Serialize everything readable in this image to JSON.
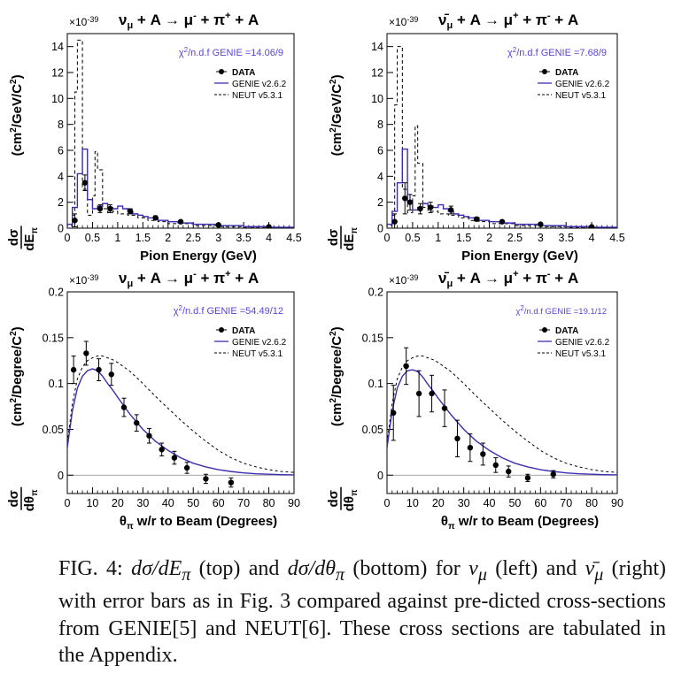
{
  "colors": {
    "genie": "#3b2fb0",
    "chi2_text": "#5a45d6",
    "data": "#000000",
    "neut": "#000000"
  },
  "chart_data": [
    {
      "type": "line",
      "title": "ν_μ + A → μ⁻ + π⁺ + A",
      "title_parts": [
        "ν",
        "μ",
        " + A → μ",
        "-",
        " + π",
        "+",
        " + A"
      ],
      "exponent": "×10⁻³⁹",
      "exp_parts": [
        "×10",
        "-39"
      ],
      "xlabel": "Pion Energy (GeV)",
      "ylabel": "dσ/dE_π (cm²/GeV/C²)",
      "ylabel_parts": [
        "(cm",
        "2",
        "/GeV/C",
        "2",
        ")"
      ],
      "ylabel_sub": "E",
      "ylabel_subsub": "π",
      "annotation": "χ²/n.d.f GENIE =14.06/9",
      "annotation_parts": [
        "χ",
        "2",
        "/n.d.f GENIE =14.06/9"
      ],
      "xlim": [
        0,
        4.5
      ],
      "ylim": [
        0,
        15
      ],
      "xticks": [
        "0",
        "0.5",
        "1",
        "1.5",
        "2",
        "2.5",
        "3",
        "3.5",
        "4",
        "4.5"
      ],
      "xtick_values": [
        0,
        0.5,
        1,
        1.5,
        2,
        2.5,
        3,
        3.5,
        4,
        4.5
      ],
      "yticks": [
        "0",
        "2",
        "4",
        "6",
        "8",
        "10",
        "12",
        "14"
      ],
      "ytick_values": [
        0,
        2,
        4,
        6,
        8,
        10,
        12,
        14
      ],
      "legend": [
        "DATA",
        "GENIE v2.6.2",
        "NEUT v5.3.1"
      ],
      "data": [
        {
          "x": 0.15,
          "y": 0.6,
          "err": 0.5
        },
        {
          "x": 0.35,
          "y": 3.5,
          "err": 0.6
        },
        {
          "x": 0.65,
          "y": 1.5,
          "err": 0.3
        },
        {
          "x": 0.85,
          "y": 1.5,
          "err": 0.3
        },
        {
          "x": 1.25,
          "y": 1.3,
          "err": 0.2
        },
        {
          "x": 1.75,
          "y": 0.8,
          "err": 0.15
        },
        {
          "x": 2.25,
          "y": 0.5,
          "err": 0.1
        },
        {
          "x": 3.0,
          "y": 0.25,
          "err": 0.08
        },
        {
          "x": 4.0,
          "y": 0.1,
          "err": 0.05
        }
      ],
      "genie": {
        "edges": [
          0,
          0.1,
          0.2,
          0.3,
          0.4,
          0.5,
          0.6,
          0.7,
          0.8,
          0.9,
          1.0,
          1.1,
          1.2,
          1.3,
          1.4,
          1.5,
          1.6,
          1.8,
          2.0,
          2.2,
          2.5,
          3.0,
          3.5,
          4.0,
          4.5
        ],
        "values": [
          0.3,
          1.6,
          4.2,
          6.1,
          2.2,
          1.5,
          1.7,
          1.9,
          1.6,
          1.5,
          1.7,
          1.5,
          1.3,
          1.1,
          1.0,
          0.9,
          0.8,
          0.6,
          0.5,
          0.4,
          0.3,
          0.2,
          0.12,
          0.07
        ]
      },
      "neut": {
        "edges": [
          0,
          0.1,
          0.15,
          0.2,
          0.3,
          0.4,
          0.5,
          0.55,
          0.6,
          0.7,
          0.8,
          0.9,
          1.0,
          1.2,
          1.4,
          1.6,
          1.8,
          2.0,
          2.5,
          3.0,
          3.5,
          4.0,
          4.5
        ],
        "values": [
          0.2,
          1.0,
          10.5,
          14.5,
          3.0,
          1.0,
          2.5,
          5.9,
          4.5,
          1.5,
          1.2,
          1.3,
          1.1,
          1.0,
          0.8,
          0.6,
          0.5,
          0.35,
          0.2,
          0.12,
          0.08,
          0.04
        ]
      }
    },
    {
      "type": "line",
      "title": "ν̄_μ + A → μ⁺ + π⁻ + A",
      "title_parts": [
        "ν̄",
        "μ",
        " + A → μ",
        "+",
        " + π",
        "-",
        " + A"
      ],
      "exponent": "×10⁻³⁹",
      "exp_parts": [
        "×10",
        "-39"
      ],
      "xlabel": "Pion Energy (GeV)",
      "ylabel": "dσ/dE_π (cm²/GeV/C²)",
      "ylabel_parts": [
        "(cm",
        "2",
        "/GeV/C",
        "2",
        ")"
      ],
      "ylabel_sub": "E",
      "ylabel_subsub": "π",
      "annotation": "χ²/n.d.f GENIE =7.68/9",
      "annotation_parts": [
        "χ",
        "2",
        "/n.d.f GENIE =7.68/9"
      ],
      "xlim": [
        0,
        4.5
      ],
      "ylim": [
        0,
        15
      ],
      "xticks": [
        "0",
        "0.5",
        "1",
        "1.5",
        "2",
        "2.5",
        "3",
        "3.5",
        "4",
        "4.5"
      ],
      "xtick_values": [
        0,
        0.5,
        1,
        1.5,
        2,
        2.5,
        3,
        3.5,
        4,
        4.5
      ],
      "yticks": [
        "0",
        "2",
        "4",
        "6",
        "8",
        "10",
        "12",
        "14"
      ],
      "ytick_values": [
        0,
        2,
        4,
        6,
        8,
        10,
        12,
        14
      ],
      "legend": [
        "DATA",
        "GENIE v2.6.2",
        "NEUT v5.3.1"
      ],
      "data": [
        {
          "x": 0.15,
          "y": 0.5,
          "err": 0.6
        },
        {
          "x": 0.35,
          "y": 2.3,
          "err": 1.2
        },
        {
          "x": 0.45,
          "y": 2.0,
          "err": 0.6
        },
        {
          "x": 0.65,
          "y": 1.5,
          "err": 0.4
        },
        {
          "x": 0.85,
          "y": 1.6,
          "err": 0.4
        },
        {
          "x": 1.25,
          "y": 1.4,
          "err": 0.3
        },
        {
          "x": 1.75,
          "y": 0.7,
          "err": 0.15
        },
        {
          "x": 2.25,
          "y": 0.5,
          "err": 0.1
        },
        {
          "x": 3.0,
          "y": 0.3,
          "err": 0.08
        },
        {
          "x": 4.0,
          "y": 0.1,
          "err": 0.05
        }
      ],
      "genie": {
        "edges": [
          0,
          0.1,
          0.2,
          0.3,
          0.4,
          0.5,
          0.6,
          0.7,
          0.8,
          0.9,
          1.0,
          1.1,
          1.2,
          1.3,
          1.4,
          1.5,
          1.6,
          1.8,
          2.0,
          2.2,
          2.5,
          3.0,
          3.5,
          4.0,
          4.5
        ],
        "values": [
          0.3,
          1.3,
          3.5,
          6.1,
          2.0,
          1.4,
          1.6,
          1.9,
          1.7,
          1.6,
          1.8,
          1.5,
          1.3,
          1.1,
          1.0,
          0.9,
          0.8,
          0.6,
          0.5,
          0.4,
          0.3,
          0.2,
          0.12,
          0.07
        ]
      },
      "neut": {
        "edges": [
          0,
          0.1,
          0.15,
          0.2,
          0.3,
          0.4,
          0.5,
          0.55,
          0.6,
          0.7,
          0.8,
          0.9,
          1.0,
          1.2,
          1.4,
          1.6,
          1.8,
          2.0,
          2.5,
          3.0,
          3.5,
          4.0,
          4.5
        ],
        "values": [
          0.2,
          1.0,
          9.5,
          14.0,
          3.0,
          1.2,
          2.5,
          7.9,
          5.0,
          1.6,
          1.3,
          1.3,
          1.1,
          1.0,
          0.8,
          0.6,
          0.5,
          0.35,
          0.2,
          0.12,
          0.08,
          0.04
        ]
      }
    },
    {
      "type": "line",
      "title": "ν_μ + A → μ⁻ + π⁺ + A",
      "title_parts": [
        "ν",
        "μ",
        " + A → μ",
        "-",
        " + π",
        "+",
        " + A"
      ],
      "exponent": "×10⁻³⁹",
      "exp_parts": [
        "×10",
        "-39"
      ],
      "xlabel": "θ_π w/r to Beam (Degrees)",
      "xlabel_parts": [
        "θ",
        "π",
        " w/r to Beam (Degrees)"
      ],
      "ylabel": "dσ/dθ_π (cm²/Degree/C²)",
      "ylabel_parts": [
        "(cm",
        "2",
        "/Degree/C",
        "2",
        ")"
      ],
      "ylabel_sub": "θ",
      "ylabel_subsub": "π",
      "annotation": "χ²/n.d.f GENIE =54.49/12",
      "annotation_parts": [
        "χ",
        "2",
        "/n.d.f GENIE =54.49/12"
      ],
      "xlim": [
        0,
        90
      ],
      "ylim": [
        -0.02,
        0.2
      ],
      "xticks": [
        "0",
        "10",
        "20",
        "30",
        "40",
        "50",
        "60",
        "70",
        "80",
        "90"
      ],
      "xtick_values": [
        0,
        10,
        20,
        30,
        40,
        50,
        60,
        70,
        80,
        90
      ],
      "yticks": [
        "0",
        "0.05",
        "0.1",
        "0.15",
        "0.2"
      ],
      "ytick_values": [
        0,
        0.05,
        0.1,
        0.15,
        0.2
      ],
      "legend": [
        "DATA",
        "GENIE v2.6.2",
        "NEUT v5.3.1"
      ],
      "data": [
        {
          "x": 2.5,
          "y": 0.115,
          "err": 0.015
        },
        {
          "x": 7.5,
          "y": 0.133,
          "err": 0.013
        },
        {
          "x": 12.5,
          "y": 0.115,
          "err": 0.012
        },
        {
          "x": 17.5,
          "y": 0.11,
          "err": 0.012
        },
        {
          "x": 22.5,
          "y": 0.074,
          "err": 0.01
        },
        {
          "x": 27.5,
          "y": 0.057,
          "err": 0.009
        },
        {
          "x": 32.5,
          "y": 0.043,
          "err": 0.008
        },
        {
          "x": 37.5,
          "y": 0.028,
          "err": 0.007
        },
        {
          "x": 42.5,
          "y": 0.019,
          "err": 0.007
        },
        {
          "x": 47.5,
          "y": 0.008,
          "err": 0.006
        },
        {
          "x": 55,
          "y": -0.004,
          "err": 0.005
        },
        {
          "x": 65,
          "y": -0.008,
          "err": 0.005
        }
      ],
      "genie_curve": {
        "x": [
          0,
          2,
          4,
          6,
          8,
          10,
          12,
          14,
          16,
          18,
          20,
          25,
          30,
          35,
          40,
          45,
          50,
          55,
          60,
          65,
          70,
          75,
          80,
          85,
          90
        ],
        "y": [
          0.03,
          0.07,
          0.095,
          0.108,
          0.114,
          0.116,
          0.114,
          0.108,
          0.1,
          0.093,
          0.085,
          0.066,
          0.05,
          0.037,
          0.027,
          0.019,
          0.013,
          0.009,
          0.006,
          0.004,
          0.0025,
          0.0015,
          0.001,
          0.0005,
          0.0003
        ]
      },
      "neut_curve": {
        "x": [
          0,
          2,
          4,
          6,
          8,
          10,
          12,
          14,
          16,
          18,
          20,
          25,
          30,
          35,
          40,
          45,
          50,
          55,
          60,
          65,
          70,
          75,
          80,
          85,
          90
        ],
        "y": [
          0.035,
          0.078,
          0.105,
          0.118,
          0.125,
          0.128,
          0.13,
          0.13,
          0.128,
          0.126,
          0.123,
          0.113,
          0.1,
          0.086,
          0.073,
          0.06,
          0.048,
          0.037,
          0.027,
          0.019,
          0.013,
          0.009,
          0.006,
          0.004,
          0.003
        ]
      }
    },
    {
      "type": "line",
      "title": "ν̄_μ + A → μ⁺ + π⁻ + A",
      "title_parts": [
        "ν̄",
        "μ",
        " + A → μ",
        "+",
        " + π",
        "-",
        " + A"
      ],
      "exponent": "×10⁻³⁹",
      "exp_parts": [
        "×10",
        "-39"
      ],
      "xlabel": "θ_π w/r to Beam (Degrees)",
      "xlabel_parts": [
        "θ",
        "π",
        " w/r to Beam (Degrees)"
      ],
      "ylabel": "dσ/dθ_π (cm²/Degree/C²)",
      "ylabel_parts": [
        "(cm",
        "2",
        "/Degree/C",
        "2",
        ")"
      ],
      "ylabel_sub": "θ",
      "ylabel_subsub": "π",
      "annotation": "χ²/n.d.f GENIE =19.1/12",
      "annotation_parts": [
        "χ",
        "2",
        "/n.d.f GENIE =19.1/12"
      ],
      "xlim": [
        0,
        90
      ],
      "ylim": [
        -0.02,
        0.2
      ],
      "xticks": [
        "0",
        "10",
        "20",
        "30",
        "40",
        "50",
        "60",
        "70",
        "80",
        "90"
      ],
      "xtick_values": [
        0,
        10,
        20,
        30,
        40,
        50,
        60,
        70,
        80,
        90
      ],
      "yticks": [
        "0",
        "0.05",
        "0.1",
        "0.15",
        "0.2"
      ],
      "ytick_values": [
        0,
        0.05,
        0.1,
        0.15,
        0.2
      ],
      "legend": [
        "DATA",
        "GENIE v2.6.2",
        "NEUT v5.3.1"
      ],
      "data": [
        {
          "x": 2.5,
          "y": 0.068,
          "err": 0.03
        },
        {
          "x": 7.5,
          "y": 0.119,
          "err": 0.02
        },
        {
          "x": 12.5,
          "y": 0.089,
          "err": 0.025
        },
        {
          "x": 17.5,
          "y": 0.089,
          "err": 0.02
        },
        {
          "x": 22.5,
          "y": 0.073,
          "err": 0.02
        },
        {
          "x": 27.5,
          "y": 0.04,
          "err": 0.02
        },
        {
          "x": 32.5,
          "y": 0.03,
          "err": 0.015
        },
        {
          "x": 37.5,
          "y": 0.023,
          "err": 0.012
        },
        {
          "x": 42.5,
          "y": 0.011,
          "err": 0.008
        },
        {
          "x": 47.5,
          "y": 0.004,
          "err": 0.006
        },
        {
          "x": 55,
          "y": -0.003,
          "err": 0.004
        },
        {
          "x": 65,
          "y": 0.001,
          "err": 0.004
        }
      ],
      "genie_curve": {
        "x": [
          0,
          2,
          4,
          6,
          8,
          10,
          12,
          14,
          16,
          18,
          20,
          25,
          30,
          35,
          40,
          45,
          50,
          55,
          60,
          65,
          70,
          75,
          80,
          85,
          90
        ],
        "y": [
          0.03,
          0.07,
          0.095,
          0.108,
          0.114,
          0.115,
          0.113,
          0.107,
          0.099,
          0.092,
          0.084,
          0.066,
          0.05,
          0.037,
          0.027,
          0.019,
          0.013,
          0.009,
          0.006,
          0.004,
          0.0025,
          0.0015,
          0.001,
          0.0005,
          0.0003
        ]
      },
      "neut_curve": {
        "x": [
          0,
          2,
          4,
          6,
          8,
          10,
          12,
          14,
          16,
          18,
          20,
          25,
          30,
          35,
          40,
          45,
          50,
          55,
          60,
          65,
          70,
          75,
          80,
          85,
          90
        ],
        "y": [
          0.035,
          0.078,
          0.105,
          0.118,
          0.125,
          0.128,
          0.13,
          0.13,
          0.128,
          0.126,
          0.123,
          0.113,
          0.1,
          0.086,
          0.073,
          0.06,
          0.048,
          0.037,
          0.027,
          0.019,
          0.013,
          0.009,
          0.006,
          0.004,
          0.003
        ]
      }
    }
  ],
  "caption": {
    "p1": "FIG. 4: ",
    "m1": "dσ/dE",
    "m1s": "π",
    "p2": " (top) and ",
    "m2": "dσ/dθ",
    "m2s": "π",
    "p3": " (bottom) for ",
    "m3": "ν",
    "m3s": "μ",
    "p4": " (left) and ",
    "m4": "ν̄",
    "m4s": "μ",
    "p5": " (right) with error bars as in Fig. 3 compared against pre-dicted cross-sections from GENIE[5] and NEUT[6].  These cross sections are tabulated in the Appendix."
  }
}
